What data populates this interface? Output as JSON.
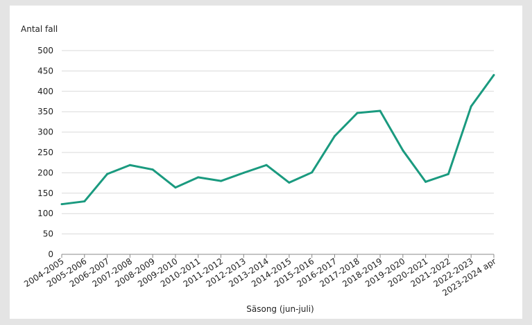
{
  "chart_data": {
    "type": "line",
    "ylabel": "Antal fall",
    "xlabel": "Säsong (jun-juli)",
    "ylim": [
      0,
      500
    ],
    "yticks": [
      "0",
      "50",
      "100",
      "150",
      "200",
      "250",
      "300",
      "350",
      "400",
      "450",
      "500"
    ],
    "grid": true,
    "legend": "none",
    "categories": [
      "2004-2005",
      "2005-2006",
      "2006-2007",
      "2007-2008",
      "2008-2009",
      "2009-2010",
      "2010-2011",
      "2011-2012",
      "2012-2013",
      "2013-2014",
      "2014-2015",
      "2015-2016",
      "2016-2017",
      "2017-2018",
      "2018-2019",
      "2019-2020",
      "2020-2021",
      "2021-2022",
      "2022-2023",
      "2023-2024 apr"
    ],
    "series": [
      {
        "values": [
          123,
          130,
          197,
          219,
          208,
          164,
          189,
          180,
          200,
          219,
          176,
          201,
          290,
          347,
          352,
          255,
          178,
          197,
          363,
          440
        ],
        "color": "#1a9a7f"
      }
    ]
  }
}
